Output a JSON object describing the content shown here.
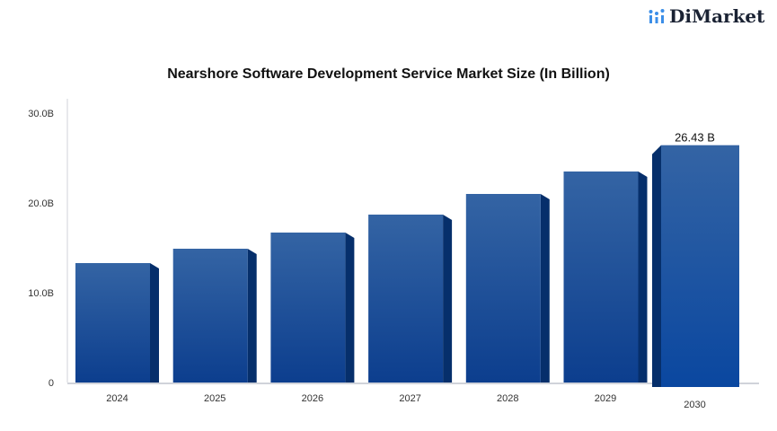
{
  "brand": {
    "name": "DiMarket",
    "icon": "bar-chart-logo-icon",
    "color": "#3b8ee8"
  },
  "chart_data": {
    "type": "bar",
    "title": "Nearshore Software Development Service Market Size (In Billion)",
    "categories": [
      "2024",
      "2025",
      "2026",
      "2027",
      "2028",
      "2029",
      "2030"
    ],
    "values": [
      13.3,
      14.9,
      16.7,
      18.7,
      21.0,
      23.5,
      26.43
    ],
    "data_labels": {
      "2030": "26.43 B"
    },
    "ylim": [
      0,
      30
    ],
    "yticks": [
      {
        "v": 0,
        "label": "0"
      },
      {
        "v": 10,
        "label": "10.0B"
      },
      {
        "v": 20,
        "label": "20.0B"
      },
      {
        "v": 30,
        "label": "30.0B"
      }
    ],
    "xlabel": "",
    "ylabel": "",
    "grid": false,
    "colors": {
      "bar_top": "#3464a4",
      "bar_bottom": "#0c3e8e",
      "side": "#062f6b",
      "highlight_bottom": "#0a47a0"
    }
  }
}
